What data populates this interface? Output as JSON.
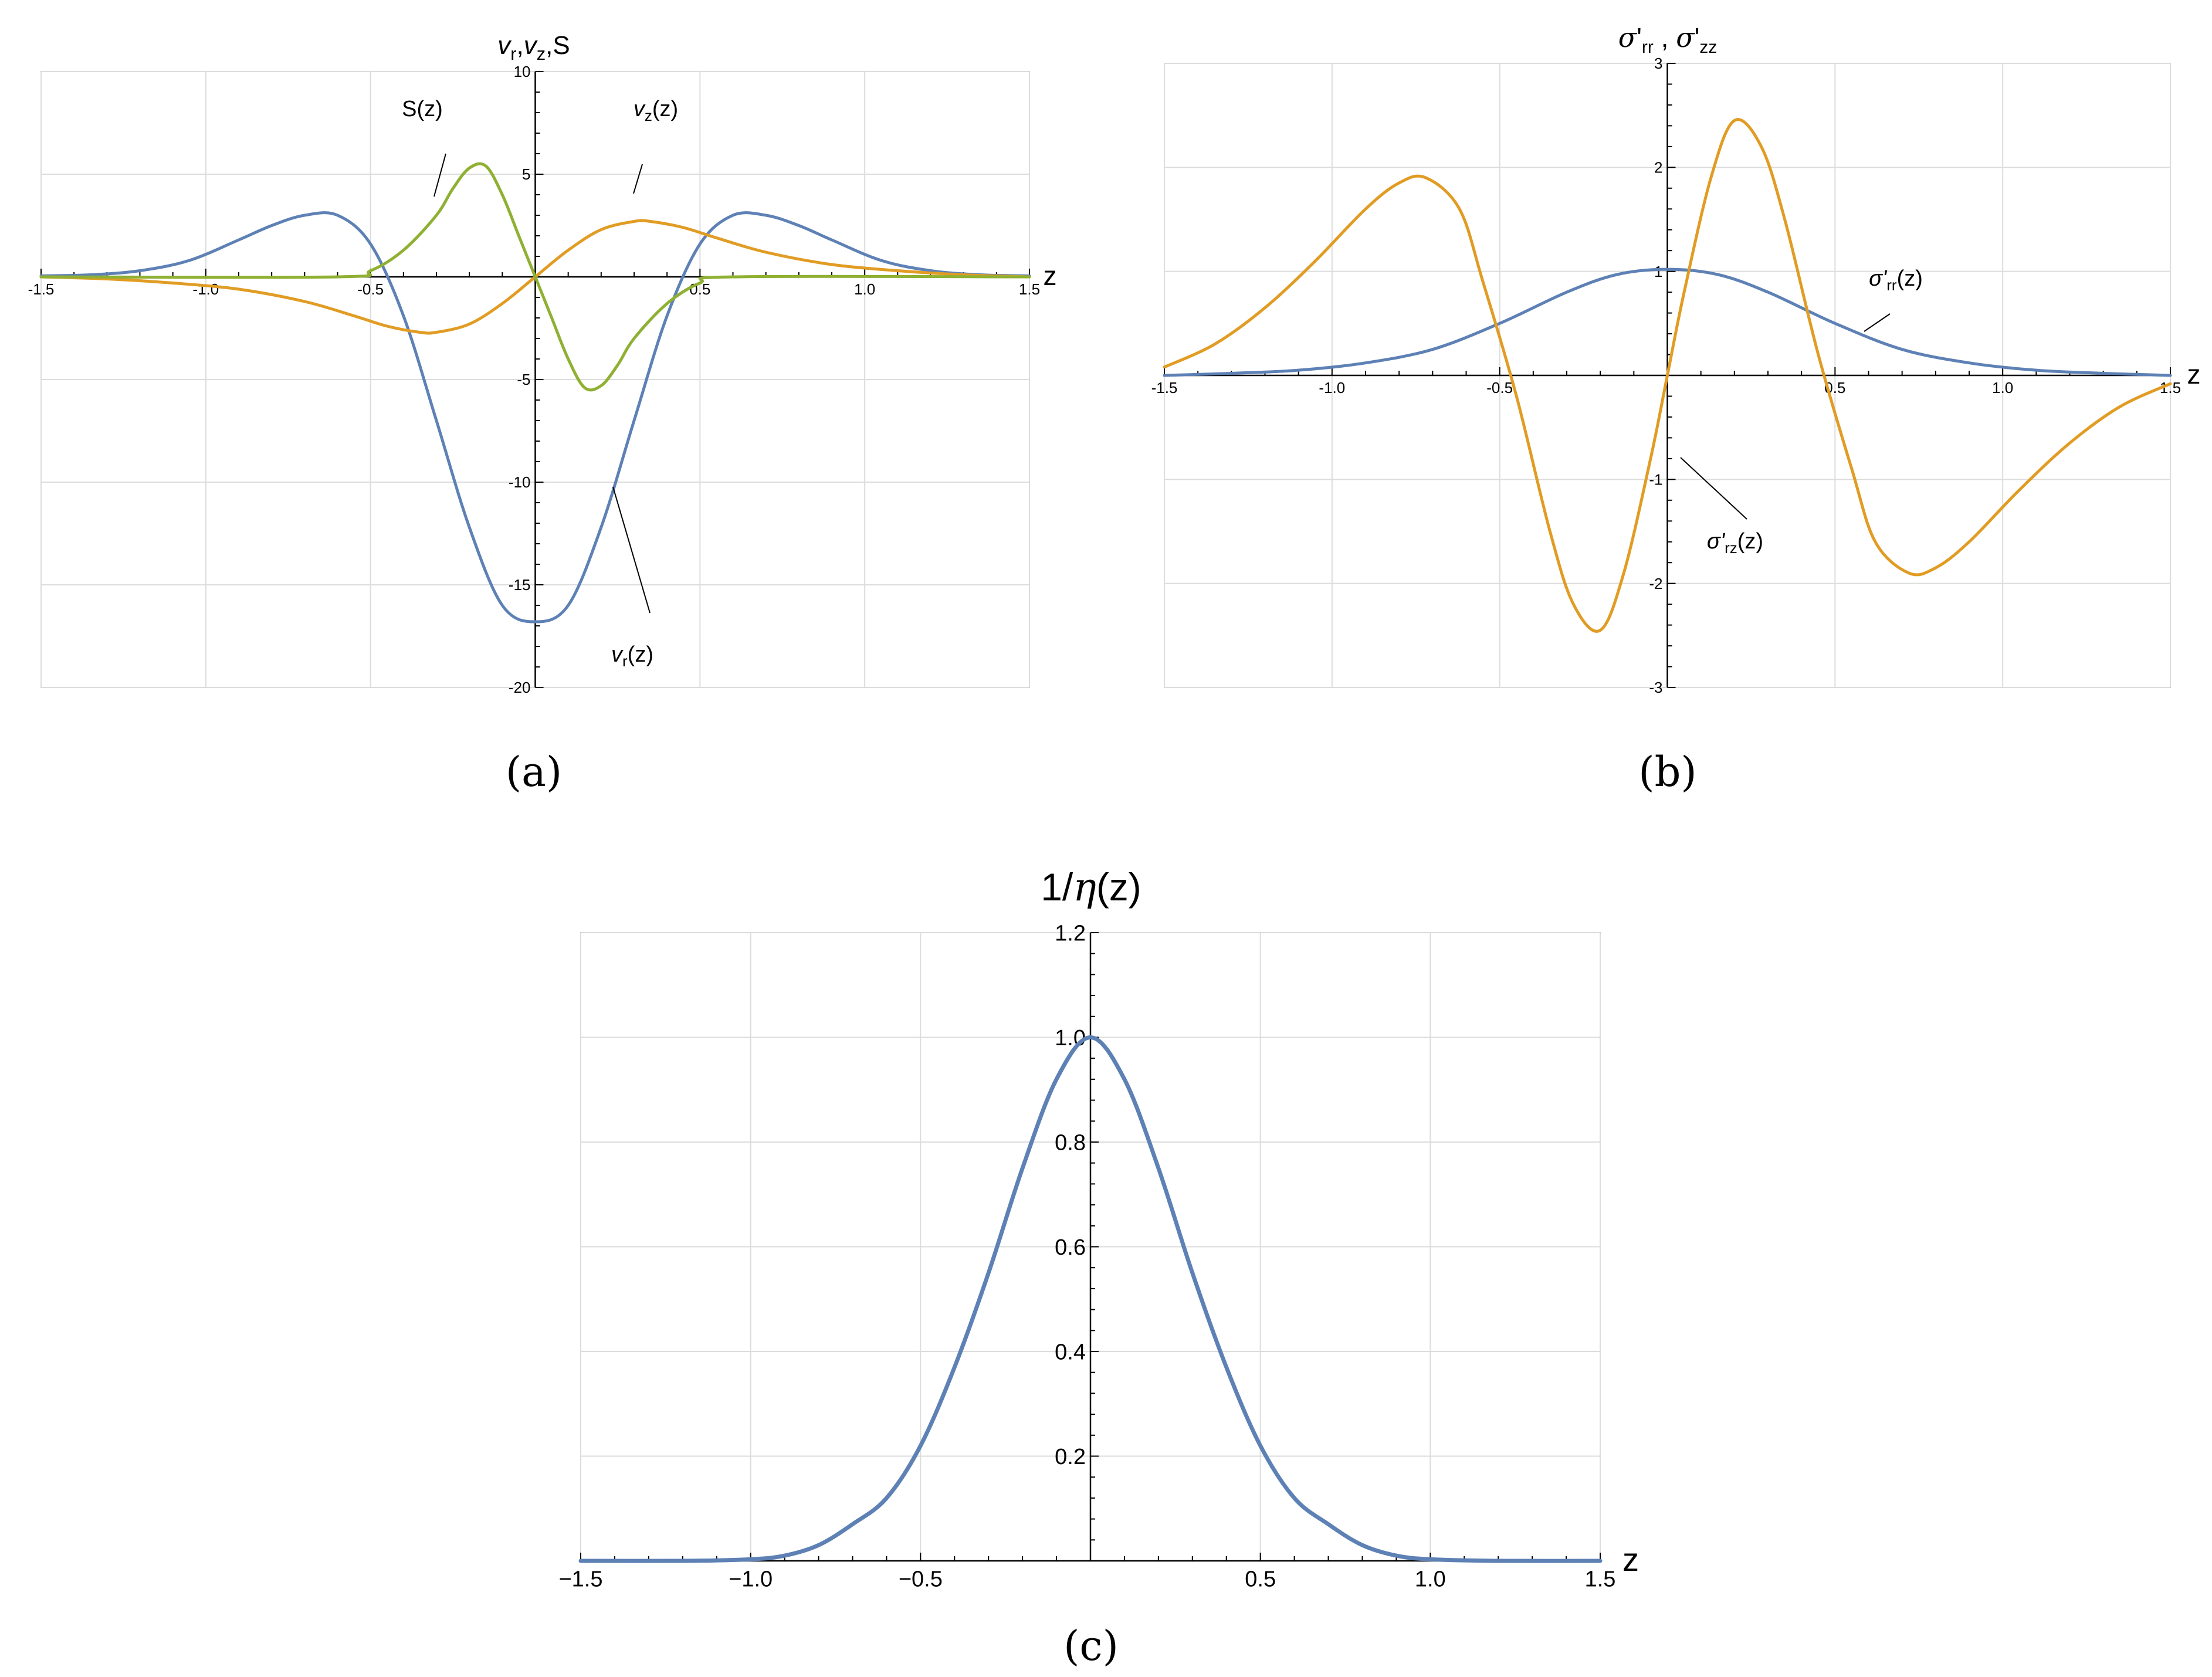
{
  "panels": [
    {
      "caption": "(a)",
      "chart_data": {
        "type": "line",
        "title": "v_r, v_z, S",
        "title_parts": [
          "v",
          "r",
          ",",
          "v",
          "z",
          ",S"
        ],
        "xlabel": "z",
        "ylabel": "",
        "xlim": [
          -1.5,
          1.5
        ],
        "ylim": [
          -20,
          10
        ],
        "xticks": [
          -1.5,
          -1.0,
          -0.5,
          0.5,
          1.0,
          1.5
        ],
        "xtick_labels": [
          "-1.5",
          "-1.0",
          "-0.5",
          "0.5",
          "1.0",
          "1.5"
        ],
        "yticks": [
          -20,
          -15,
          -10,
          -5,
          5,
          10
        ],
        "ytick_labels": [
          "-20",
          "-15",
          "-10",
          "-5",
          "5",
          "10"
        ],
        "grid": true,
        "series": [
          {
            "name": "v_r(z)",
            "color": "#5e81b5",
            "x": [
              -1.5,
              -1.35,
              -1.2,
              -1.05,
              -0.9,
              -0.8,
              -0.7,
              -0.6,
              -0.5,
              -0.4,
              -0.3,
              -0.2,
              -0.1,
              0.0,
              0.1,
              0.2,
              0.3,
              0.4,
              0.5,
              0.6,
              0.7,
              0.8,
              0.9,
              1.05,
              1.2,
              1.35,
              1.5
            ],
            "y": [
              0.05,
              0.1,
              0.3,
              0.8,
              1.8,
              2.5,
              3.0,
              3.0,
              1.6,
              -1.9,
              -7.0,
              -12.2,
              -16.0,
              -16.8,
              -16.0,
              -12.2,
              -7.0,
              -1.9,
              1.6,
              3.0,
              3.0,
              2.5,
              1.8,
              0.8,
              0.3,
              0.1,
              0.05
            ]
          },
          {
            "name": "v_z(z)",
            "color": "#e19c24",
            "x": [
              -1.5,
              -1.3,
              -1.1,
              -0.9,
              -0.7,
              -0.55,
              -0.45,
              -0.35,
              -0.3,
              -0.2,
              -0.1,
              0.0,
              0.1,
              0.2,
              0.3,
              0.35,
              0.45,
              0.55,
              0.7,
              0.9,
              1.1,
              1.3,
              1.5
            ],
            "y": [
              0.0,
              -0.1,
              -0.3,
              -0.6,
              -1.2,
              -1.9,
              -2.4,
              -2.7,
              -2.7,
              -2.3,
              -1.3,
              0.0,
              1.3,
              2.3,
              2.7,
              2.7,
              2.4,
              1.9,
              1.2,
              0.6,
              0.3,
              0.1,
              0.0
            ]
          },
          {
            "name": "S(z)",
            "color": "#8fb032",
            "x": [
              -1.5,
              -0.6,
              -0.5,
              -0.4,
              -0.3,
              -0.25,
              -0.2,
              -0.15,
              -0.1,
              -0.05,
              0.0,
              0.05,
              0.1,
              0.15,
              0.2,
              0.25,
              0.3,
              0.4,
              0.5,
              0.6,
              1.5
            ],
            "y": [
              0.0,
              0.0,
              0.3,
              1.3,
              3.0,
              4.3,
              5.3,
              5.4,
              4.0,
              2.0,
              0.0,
              -2.0,
              -4.0,
              -5.4,
              -5.3,
              -4.3,
              -3.0,
              -1.3,
              -0.3,
              0.0,
              0.0
            ]
          }
        ],
        "annotations": [
          {
            "text": "S(z)",
            "base": "S",
            "sub": "",
            "rest": "(z)"
          },
          {
            "text": "v_z(z)",
            "base": "v",
            "sub": "z",
            "rest": "(z)"
          },
          {
            "text": "v_r(z)",
            "base": "v",
            "sub": "r",
            "rest": "(z)"
          }
        ]
      }
    },
    {
      "caption": "(b)",
      "chart_data": {
        "type": "line",
        "title": "σ'rr , σ'zz",
        "title_parts": [
          "σ",
          "'",
          "rr",
          " , ",
          "σ",
          "'",
          "zz"
        ],
        "xlabel": "z",
        "ylabel": "",
        "xlim": [
          -1.5,
          1.5
        ],
        "ylim": [
          -3,
          3
        ],
        "xticks": [
          -1.5,
          -1.0,
          -0.5,
          0.5,
          1.0,
          1.5
        ],
        "xtick_labels": [
          "-1.5",
          "-1.0",
          "-0.5",
          "0.5",
          "1.0",
          "1.5"
        ],
        "yticks": [
          -3,
          -2,
          -1,
          1,
          2,
          3
        ],
        "ytick_labels": [
          "-3",
          "-2",
          "-1",
          "1",
          "2",
          "3"
        ],
        "grid": true,
        "series": [
          {
            "name": "σ'rr(z)",
            "color": "#5e81b5",
            "x": [
              -1.5,
              -1.3,
              -1.1,
              -0.9,
              -0.7,
              -0.5,
              -0.3,
              -0.15,
              0.0,
              0.15,
              0.3,
              0.5,
              0.7,
              0.9,
              1.1,
              1.3,
              1.5
            ],
            "y": [
              0.0,
              0.02,
              0.05,
              0.12,
              0.25,
              0.5,
              0.8,
              0.97,
              1.02,
              0.97,
              0.8,
              0.5,
              0.25,
              0.12,
              0.05,
              0.02,
              0.0
            ]
          },
          {
            "name": "σ'rz(z)",
            "color": "#e19c24",
            "x": [
              -1.5,
              -1.35,
              -1.2,
              -1.05,
              -0.9,
              -0.8,
              -0.72,
              -0.62,
              -0.55,
              -0.45,
              -0.35,
              -0.28,
              -0.2,
              -0.13,
              -0.05,
              0.0,
              0.05,
              0.13,
              0.2,
              0.28,
              0.35,
              0.45,
              0.55,
              0.62,
              0.72,
              0.8,
              0.9,
              1.05,
              1.2,
              1.35,
              1.5
            ],
            "y": [
              0.08,
              0.3,
              0.65,
              1.1,
              1.6,
              1.85,
              1.9,
              1.6,
              0.9,
              -0.2,
              -1.5,
              -2.2,
              -2.45,
              -1.9,
              -0.8,
              0.0,
              0.8,
              1.9,
              2.45,
              2.2,
              1.5,
              0.2,
              -0.9,
              -1.6,
              -1.9,
              -1.85,
              -1.6,
              -1.1,
              -0.65,
              -0.3,
              -0.08
            ]
          }
        ],
        "annotations": [
          {
            "text": "σ'rr(z)",
            "base": "σ'",
            "sub": "rr",
            "rest": "(z)"
          },
          {
            "text": "σ'rz(z)",
            "base": "σ'",
            "sub": "rz",
            "rest": "(z)"
          }
        ]
      }
    },
    {
      "caption": "(c)",
      "chart_data": {
        "type": "line",
        "title": "1/η(z)",
        "title_parts": [
          "1/",
          "η",
          "(z)"
        ],
        "xlabel": "z",
        "ylabel": "",
        "xlim": [
          -1.5,
          1.5
        ],
        "ylim": [
          0,
          1.2
        ],
        "xticks": [
          -1.5,
          -1.0,
          -0.5,
          0.5,
          1.0,
          1.5
        ],
        "xtick_labels": [
          "−1.5",
          "−1.0",
          "−0.5",
          "0.5",
          "1.0",
          "1.5"
        ],
        "yticks": [
          0.2,
          0.4,
          0.6,
          0.8,
          1.0,
          1.2
        ],
        "ytick_labels": [
          "0.2",
          "0.4",
          "0.6",
          "0.8",
          "1.0",
          "1.2"
        ],
        "grid": true,
        "series": [
          {
            "name": "1/η(z)",
            "color": "#5e81b5",
            "x": [
              -1.5,
              -1.2,
              -1.0,
              -0.9,
              -0.8,
              -0.7,
              -0.6,
              -0.5,
              -0.4,
              -0.3,
              -0.2,
              -0.1,
              0.0,
              0.1,
              0.2,
              0.3,
              0.4,
              0.5,
              0.6,
              0.7,
              0.8,
              0.9,
              1.0,
              1.2,
              1.5
            ],
            "y": [
              0.0,
              0.0,
              0.003,
              0.01,
              0.03,
              0.07,
              0.12,
              0.22,
              0.37,
              0.55,
              0.75,
              0.92,
              1.0,
              0.92,
              0.75,
              0.55,
              0.37,
              0.22,
              0.12,
              0.07,
              0.03,
              0.01,
              0.003,
              0.0,
              0.0
            ]
          }
        ],
        "annotations": []
      }
    }
  ]
}
